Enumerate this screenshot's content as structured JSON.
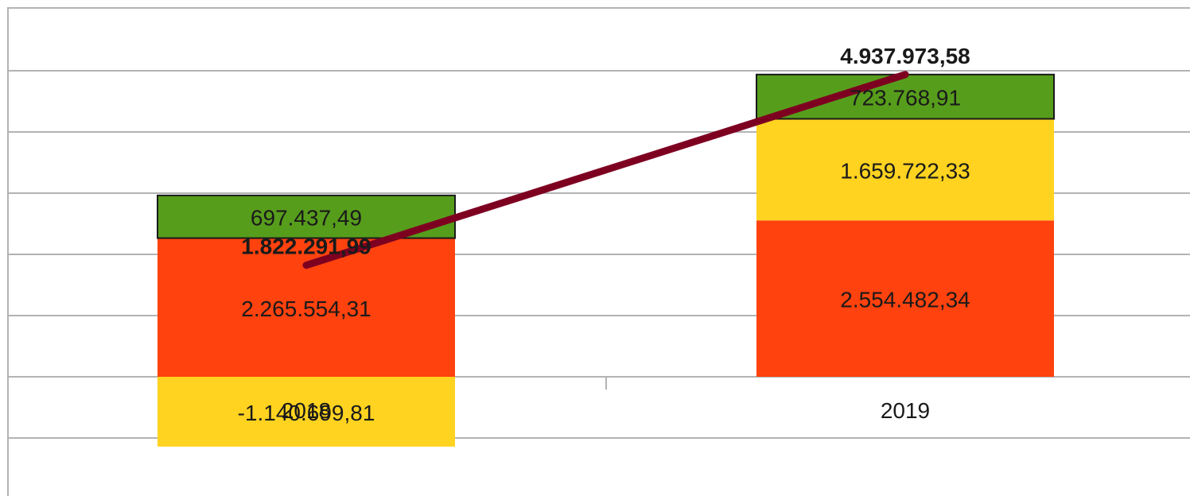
{
  "chart_data": {
    "type": "bar",
    "stacked": true,
    "categories": [
      "2018",
      "2019"
    ],
    "series": [
      {
        "values": [
          2265554.31,
          2554482.34
        ],
        "labels": [
          "2.265.554,31",
          "2.554.482,34"
        ],
        "color": "#ff420e"
      },
      {
        "values": [
          -1140699.81,
          1659722.33
        ],
        "labels": [
          "-1.140.699,81",
          "1.659.722,33"
        ],
        "color": "#ffd320"
      },
      {
        "values": [
          697437.49,
          723768.91
        ],
        "labels": [
          "697.437,49",
          "723.768,91"
        ],
        "color": "#579d1c"
      }
    ],
    "total_line": {
      "values": [
        1822291.99,
        4937973.58
      ],
      "labels": [
        "1.822.291,99",
        "4.937.973,58"
      ],
      "color": "#7e0021"
    },
    "ylim": [
      -1500000,
      5500000
    ],
    "grid": true,
    "legend": "none"
  }
}
